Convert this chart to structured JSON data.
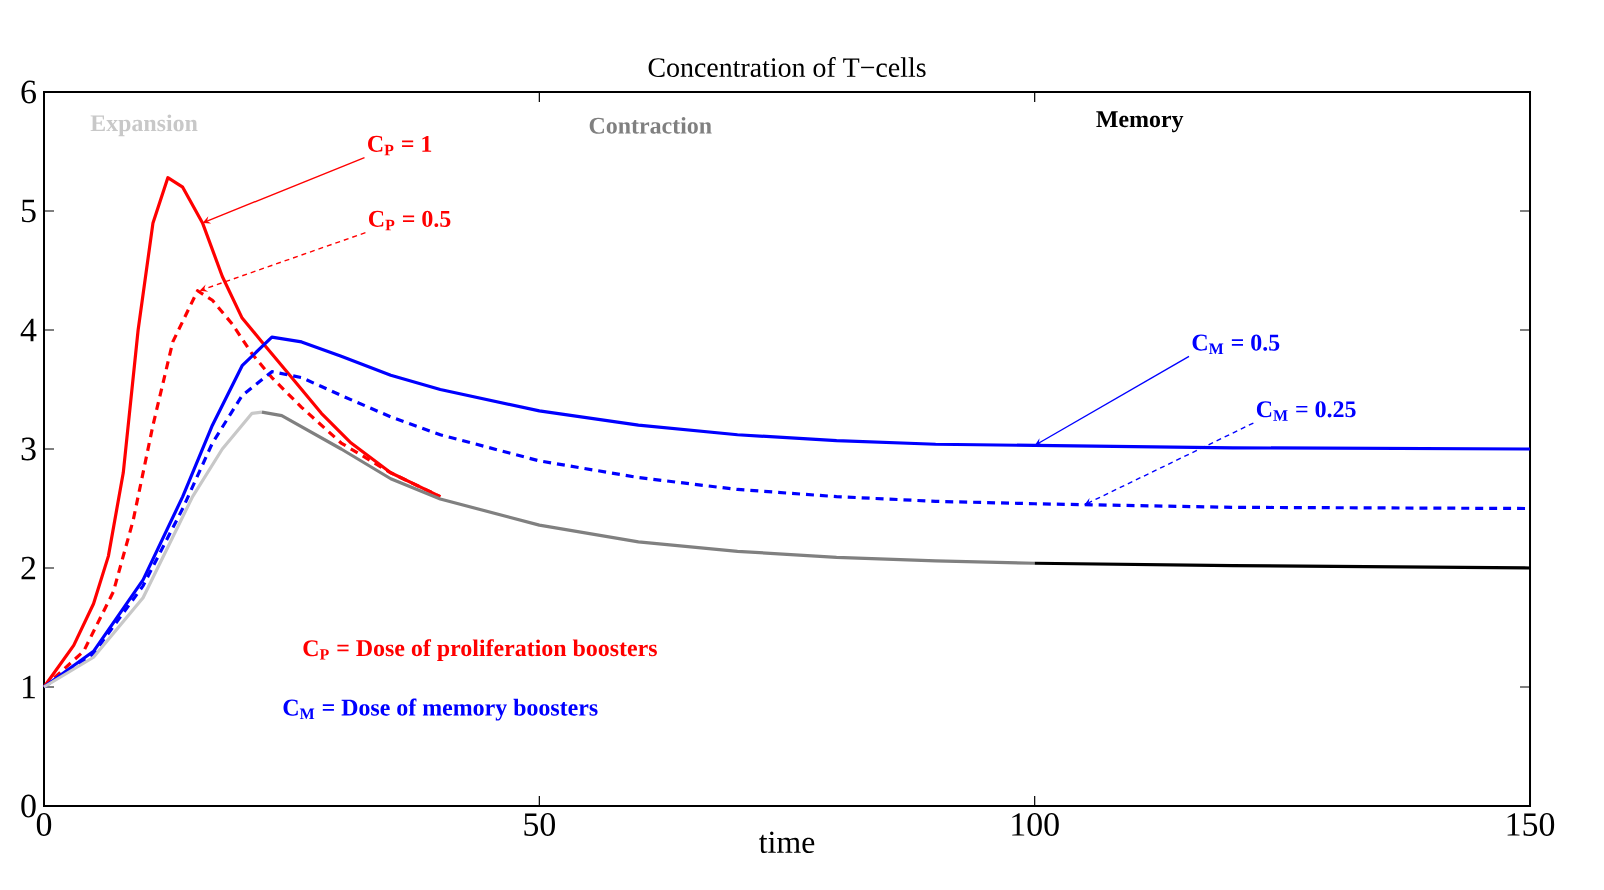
{
  "chart_data": {
    "type": "line",
    "title": "Concentration of T−cells",
    "xlabel": "time",
    "xlim": [
      0,
      150
    ],
    "ylim": [
      0,
      6
    ],
    "xticks": [
      0,
      50,
      100,
      150
    ],
    "yticks": [
      0,
      1,
      2,
      3,
      4,
      5,
      6
    ],
    "series": [
      {
        "color": "#ff0000",
        "line_style": "solid",
        "x": [
          0,
          3,
          5,
          6.5,
          8,
          9.5,
          11,
          12.5,
          14,
          16,
          18,
          20,
          22,
          25,
          28,
          31,
          35,
          40
        ],
        "values": [
          1,
          1.35,
          1.7,
          2.1,
          2.8,
          4.0,
          4.9,
          5.28,
          5.2,
          4.9,
          4.45,
          4.1,
          3.9,
          3.6,
          3.3,
          3.05,
          2.8,
          2.6
        ]
      },
      {
        "color": "#ff0000",
        "line_style": "dashed",
        "x": [
          0,
          4,
          7,
          9,
          11,
          13,
          15.5,
          17,
          19,
          21,
          23,
          26,
          30,
          35,
          40
        ],
        "values": [
          1,
          1.3,
          1.8,
          2.4,
          3.2,
          3.9,
          4.33,
          4.25,
          4.05,
          3.8,
          3.6,
          3.35,
          3.05,
          2.8,
          2.6
        ]
      },
      {
        "color": "#0000ff",
        "line_style": "solid",
        "x": [
          0,
          5,
          10,
          14,
          17,
          20,
          23,
          26,
          30,
          35,
          40,
          50,
          60,
          70,
          80,
          90,
          100,
          120,
          150
        ],
        "values": [
          1,
          1.3,
          1.9,
          2.6,
          3.2,
          3.7,
          3.94,
          3.9,
          3.78,
          3.62,
          3.5,
          3.32,
          3.2,
          3.12,
          3.07,
          3.04,
          3.03,
          3.01,
          3.0
        ]
      },
      {
        "color": "#0000ff",
        "line_style": "dashed",
        "x": [
          0,
          5,
          10,
          14,
          17,
          20,
          23,
          26,
          30,
          35,
          40,
          50,
          60,
          70,
          80,
          90,
          100,
          120,
          150
        ],
        "values": [
          1,
          1.28,
          1.85,
          2.5,
          3.05,
          3.45,
          3.65,
          3.6,
          3.45,
          3.27,
          3.12,
          2.9,
          2.76,
          2.66,
          2.6,
          2.56,
          2.54,
          2.51,
          2.5
        ]
      },
      {
        "color": "#c8c8c8",
        "line_style": "solid",
        "x": [
          0,
          5,
          10,
          15,
          18,
          21,
          22
        ],
        "values": [
          1,
          1.25,
          1.75,
          2.6,
          3.0,
          3.3,
          3.31
        ]
      },
      {
        "color": "#808080",
        "line_style": "solid",
        "x": [
          22,
          24,
          30,
          35,
          40,
          50,
          60,
          70,
          80,
          90,
          100
        ],
        "values": [
          3.31,
          3.28,
          3.0,
          2.75,
          2.58,
          2.36,
          2.22,
          2.14,
          2.09,
          2.06,
          2.04
        ]
      },
      {
        "color": "#000000",
        "line_style": "solid",
        "x": [
          100,
          120,
          150
        ],
        "values": [
          2.04,
          2.02,
          2.0
        ]
      }
    ],
    "annotations": [
      "Expansion",
      "Contraction",
      "Memory",
      {
        "text": "C$_{P}$ = 1",
        "x": 16,
        "y": 4.9
      },
      {
        "text": "C$_{P}$ = 0.5",
        "x": 15.7,
        "y": 4.33
      },
      {
        "text": "C$_{M}$ = 0.5",
        "x": 100,
        "y": 3.03
      },
      {
        "text": "C$_{M}$ = 0.25",
        "x": 105,
        "y": 2.53
      },
      "C$_{P}$ = Dose of proliferation boosters",
      "C$_{M}$ = Dose of memory boosters"
    ]
  }
}
